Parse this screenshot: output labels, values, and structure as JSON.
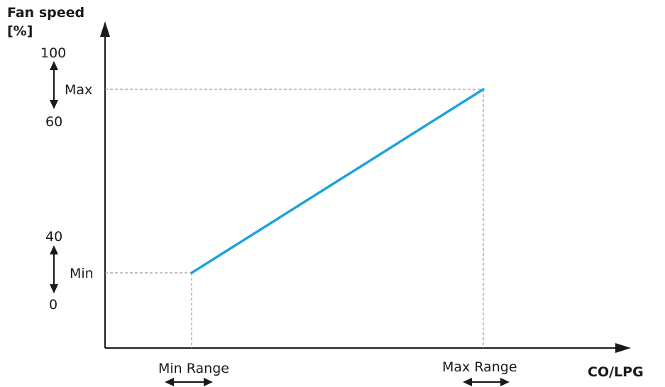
{
  "y_axis": {
    "title_line1": "Fan speed",
    "title_line2": "[%]"
  },
  "x_axis": {
    "title": "CO/LPG"
  },
  "y_labels": {
    "top_max": "100",
    "max": "Max",
    "bottom_max": "60",
    "top_min": "40",
    "min": "Min",
    "bottom_min": "0"
  },
  "x_labels": {
    "min_range": "Min Range",
    "max_range": "Max Range"
  },
  "colors": {
    "line": "#1aa3dc",
    "axis": "#1a1a1a",
    "guide": "#9a9a9a"
  }
}
